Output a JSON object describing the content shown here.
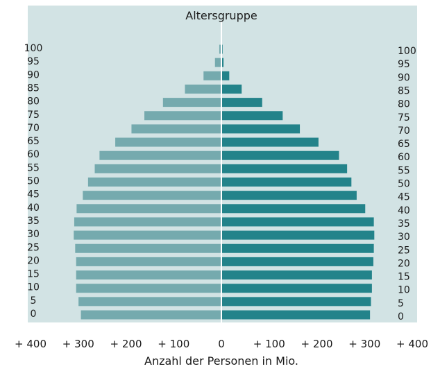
{
  "chart_data": {
    "type": "bar",
    "orientation": "horizontal-population-pyramid",
    "title": "Altersgruppe",
    "xlabel": "Anzahl der Personen in Mio.",
    "xlim": [
      -400,
      400
    ],
    "x_ticks": [
      -400,
      -300,
      -200,
      -100,
      0,
      100,
      200,
      300,
      400
    ],
    "x_tick_labels": [
      "+ 400",
      "+ 300",
      "+ 200",
      "+ 100",
      "0",
      "+ 100",
      "+ 200",
      "+ 300",
      "+ 400"
    ],
    "categories": [
      "0",
      "5",
      "10",
      "15",
      "20",
      "25",
      "30",
      "35",
      "40",
      "45",
      "50",
      "55",
      "60",
      "65",
      "70",
      "75",
      "80",
      "85",
      "90",
      "95",
      "100"
    ],
    "grid": false,
    "legend": "none",
    "series": [
      {
        "side": "left",
        "color": "#75aaae",
        "values": [
          293,
          298,
          303,
          303,
          303,
          305,
          308,
          307,
          302,
          289,
          278,
          264,
          254,
          221,
          187,
          160,
          121,
          75,
          36,
          12,
          3
        ]
      },
      {
        "side": "right",
        "color": "#23838a",
        "values": [
          310,
          312,
          314,
          314,
          317,
          318,
          319,
          318,
          300,
          282,
          271,
          262,
          245,
          202,
          163,
          127,
          84,
          41,
          15,
          3,
          1
        ]
      }
    ]
  },
  "colors": {
    "panel_background": "#d2e3e4",
    "axis": "#ffffff",
    "text": "#1a1a1a"
  }
}
